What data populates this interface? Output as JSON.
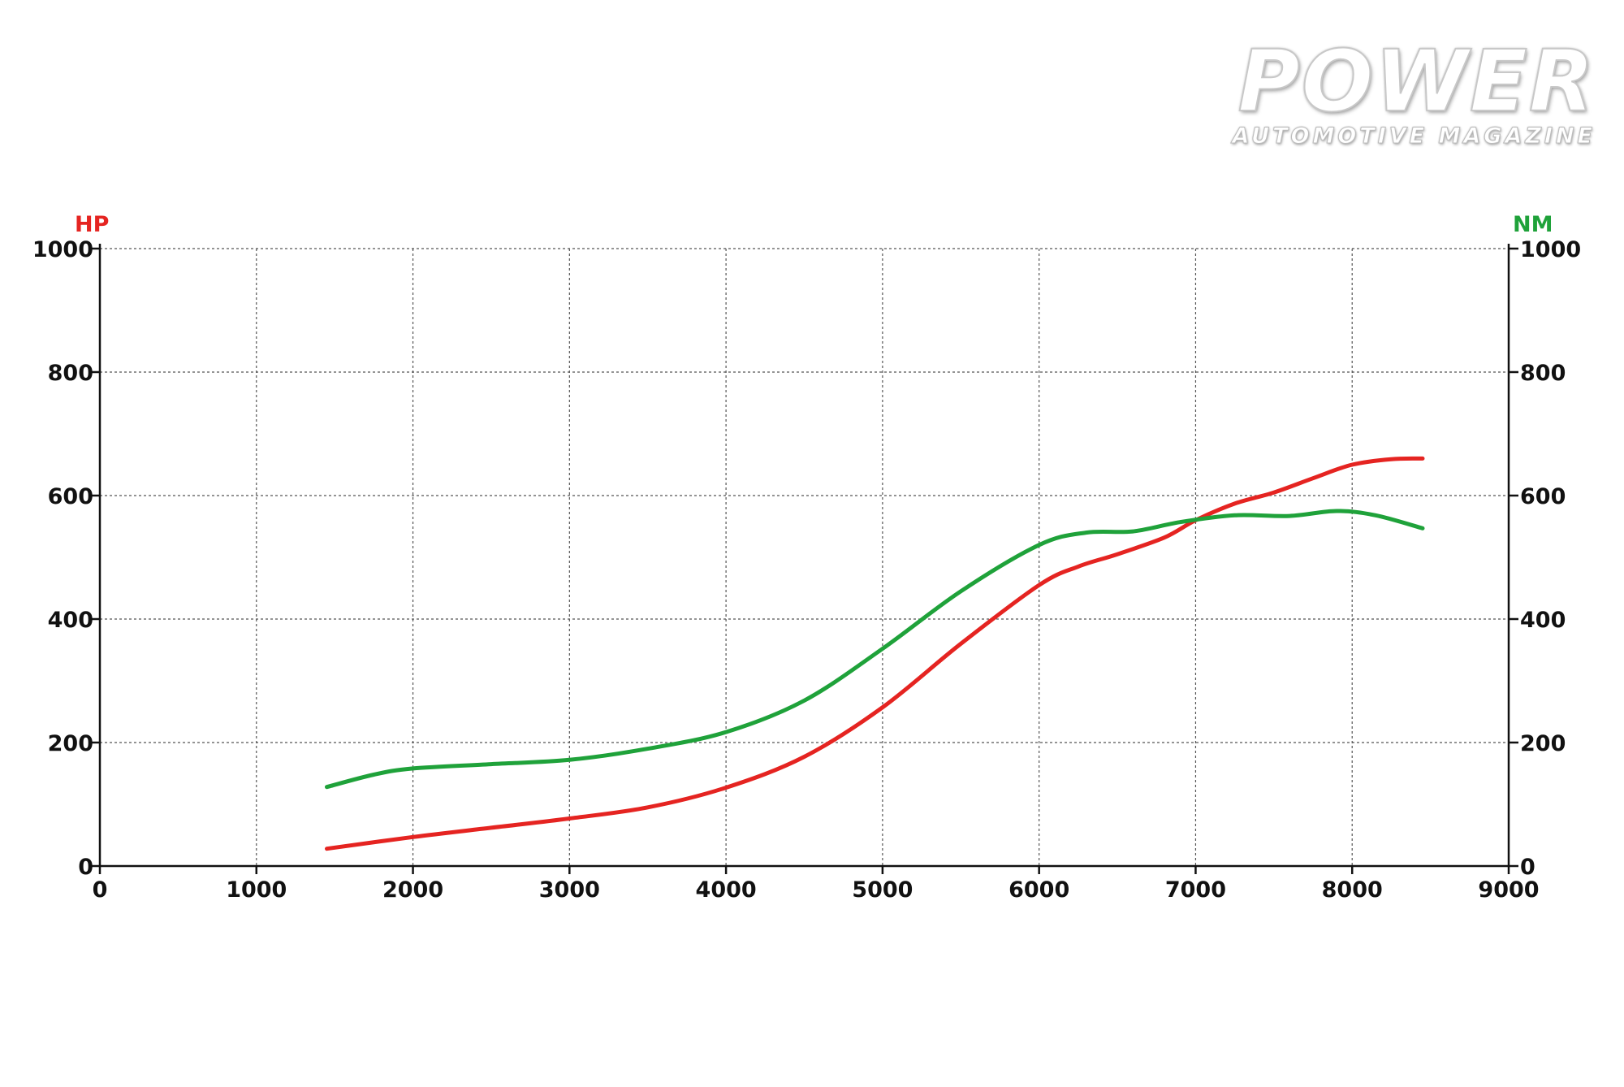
{
  "brand": {
    "title": "POWER",
    "subtitle": "AUTOMOTIVE MAGAZINE"
  },
  "chart_data": {
    "type": "line",
    "title": "",
    "xlabel": "",
    "ylabel_left": "HP",
    "ylabel_right": "NM",
    "xlim": [
      0,
      9000
    ],
    "ylim": [
      0,
      1000
    ],
    "y2lim": [
      0,
      1000
    ],
    "x_ticks": [
      0,
      1000,
      2000,
      3000,
      4000,
      5000,
      6000,
      7000,
      8000,
      9000
    ],
    "y_ticks": [
      0,
      200,
      400,
      600,
      800,
      1000
    ],
    "y2_ticks": [
      0,
      200,
      400,
      600,
      800,
      1000
    ],
    "grid": true,
    "colors": {
      "hp": "#e52421",
      "nm": "#1fa23a",
      "grid": "#555555",
      "axis": "#111111"
    },
    "series": [
      {
        "axis": "left",
        "color": "#e52421",
        "points": [
          [
            1450,
            28
          ],
          [
            2000,
            47
          ],
          [
            2500,
            62
          ],
          [
            3000,
            77
          ],
          [
            3500,
            95
          ],
          [
            4000,
            127
          ],
          [
            4500,
            177
          ],
          [
            5000,
            257
          ],
          [
            5500,
            360
          ],
          [
            6000,
            455
          ],
          [
            6250,
            485
          ],
          [
            6500,
            505
          ],
          [
            6800,
            532
          ],
          [
            7000,
            560
          ],
          [
            7250,
            587
          ],
          [
            7500,
            605
          ],
          [
            7750,
            628
          ],
          [
            8000,
            650
          ],
          [
            8250,
            659
          ],
          [
            8450,
            660
          ]
        ]
      },
      {
        "axis": "right",
        "color": "#1fa23a",
        "points": [
          [
            1450,
            128
          ],
          [
            1750,
            148
          ],
          [
            2000,
            158
          ],
          [
            2500,
            165
          ],
          [
            3000,
            172
          ],
          [
            3500,
            190
          ],
          [
            4000,
            217
          ],
          [
            4500,
            268
          ],
          [
            5000,
            352
          ],
          [
            5500,
            445
          ],
          [
            6000,
            520
          ],
          [
            6300,
            540
          ],
          [
            6600,
            542
          ],
          [
            6900,
            557
          ],
          [
            7250,
            568
          ],
          [
            7600,
            567
          ],
          [
            7900,
            575
          ],
          [
            8150,
            568
          ],
          [
            8450,
            547
          ]
        ]
      }
    ]
  }
}
